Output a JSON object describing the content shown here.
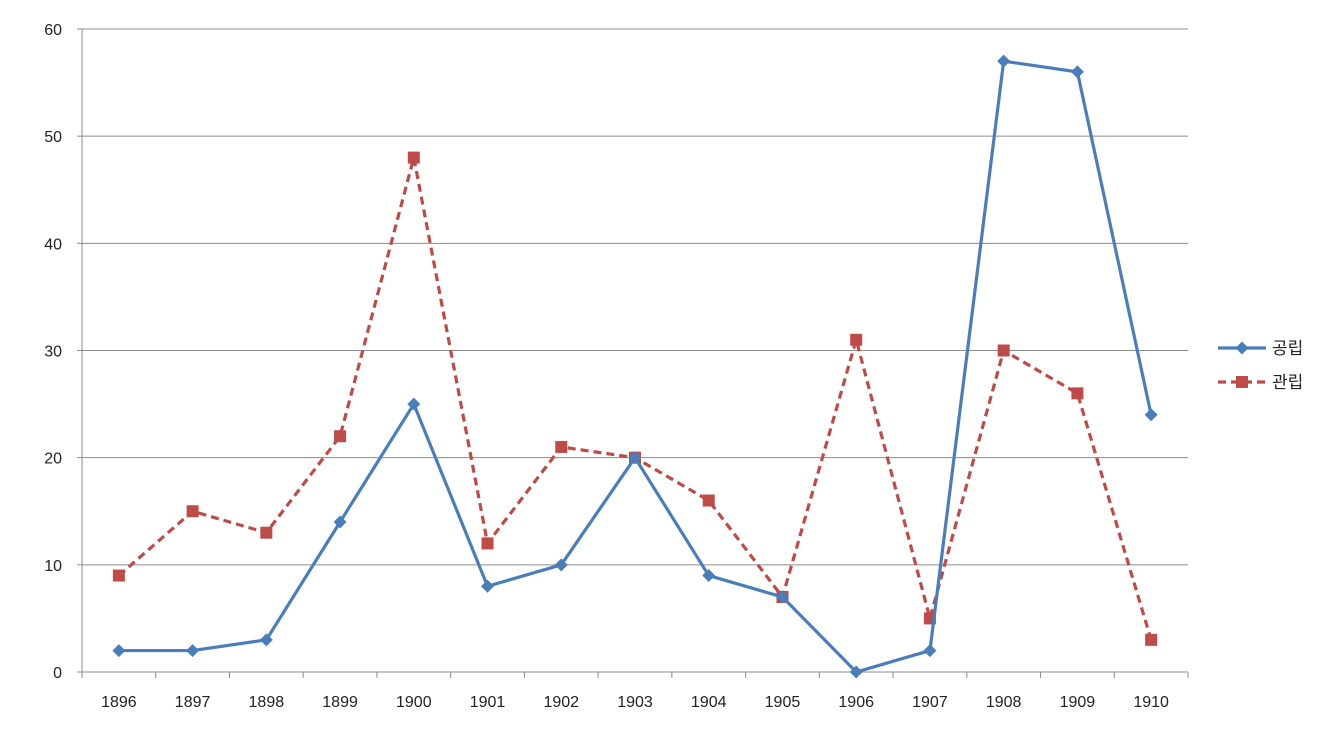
{
  "chart_data": {
    "type": "line",
    "categories": [
      "1896",
      "1897",
      "1898",
      "1899",
      "1900",
      "1901",
      "1902",
      "1903",
      "1904",
      "1905",
      "1906",
      "1907",
      "1908",
      "1909",
      "1910"
    ],
    "series": [
      {
        "name": "공립",
        "color": "#4a7ebb",
        "line_style": "solid",
        "marker": "diamond",
        "values": [
          2,
          2,
          3,
          14,
          25,
          8,
          10,
          20,
          9,
          7,
          0,
          2,
          57,
          56,
          24
        ]
      },
      {
        "name": "관립",
        "color": "#be4b48",
        "line_style": "dashed",
        "marker": "square",
        "values": [
          9,
          15,
          13,
          22,
          48,
          12,
          21,
          20,
          16,
          7,
          31,
          5,
          30,
          26,
          3
        ]
      }
    ],
    "ylim": [
      0,
      60
    ],
    "yticks": [
      0,
      10,
      20,
      30,
      40,
      50,
      60
    ],
    "grid": true,
    "legend_position": "right",
    "title": "",
    "xlabel": "",
    "ylabel": ""
  }
}
